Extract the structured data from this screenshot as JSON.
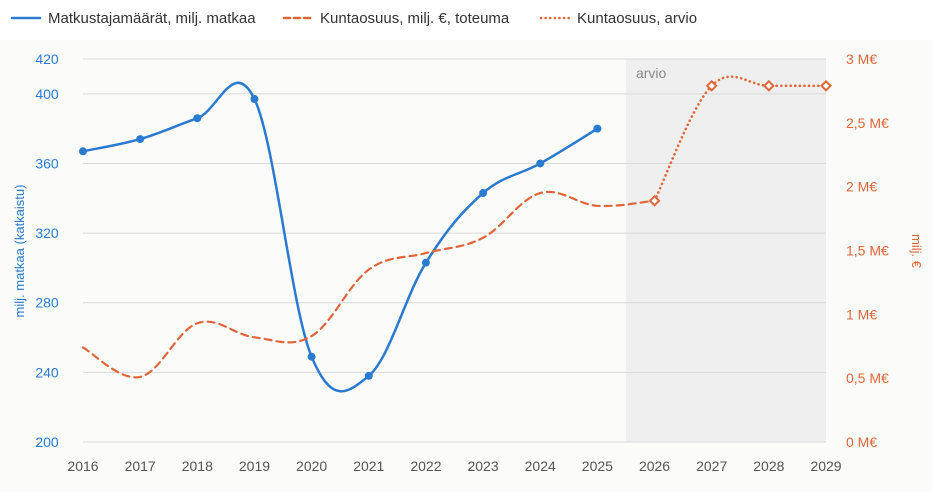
{
  "chart_data": {
    "type": "line",
    "x": [
      "2016",
      "2017",
      "2018",
      "2019",
      "2020",
      "2021",
      "2022",
      "2023",
      "2024",
      "2025",
      "2026",
      "2027",
      "2028",
      "2029"
    ],
    "legend_position": "top-left",
    "grid": true,
    "forecast_region": {
      "label": "arvio",
      "from": "2025.5",
      "to": "2029"
    },
    "y_left": {
      "label": "milj. matkaa (katkaistu)",
      "ylim": [
        200,
        420
      ],
      "ticks": [
        200,
        240,
        280,
        320,
        360,
        400,
        420
      ],
      "tick_labels": [
        "200",
        "240",
        "280",
        "320",
        "360",
        "400",
        "420"
      ],
      "color": "#2a7ad0"
    },
    "y_right": {
      "label": "milj. €",
      "ylim": [
        0,
        3
      ],
      "ticks": [
        0,
        0.5,
        1,
        1.5,
        2,
        2.5,
        3
      ],
      "tick_labels": [
        "0 M€",
        "0,5 M€",
        "1 M€",
        "1,5 M€",
        "2 M€",
        "2,5 M€",
        "3 M€"
      ],
      "color": "#e0663a"
    },
    "series": [
      {
        "name": "Matkustajamäärät, milj. matkaa",
        "axis": "left",
        "style": "solid",
        "color": "#2a7ad0",
        "x": [
          "2016",
          "2017",
          "2018",
          "2019",
          "2020",
          "2021",
          "2022",
          "2023",
          "2024",
          "2025"
        ],
        "values": [
          367,
          374,
          386,
          397,
          249,
          238,
          303,
          343,
          360,
          380
        ]
      },
      {
        "name": "Kuntaosuus, milj. €, toteuma",
        "axis": "right",
        "style": "dashed",
        "color": "#e0663a",
        "x": [
          "2016",
          "2017",
          "2018",
          "2019",
          "2020",
          "2021",
          "2022",
          "2023",
          "2024",
          "2025",
          "2026"
        ],
        "values": [
          0.74,
          0.51,
          0.93,
          0.82,
          0.83,
          1.35,
          1.48,
          1.6,
          1.95,
          1.85,
          1.89
        ]
      },
      {
        "name": "Kuntaosuus, arvio",
        "axis": "right",
        "style": "dotted",
        "color": "#e0663a",
        "x": [
          "2026",
          "2027",
          "2028",
          "2029"
        ],
        "values": [
          1.89,
          2.79,
          2.79,
          2.79
        ]
      }
    ]
  }
}
